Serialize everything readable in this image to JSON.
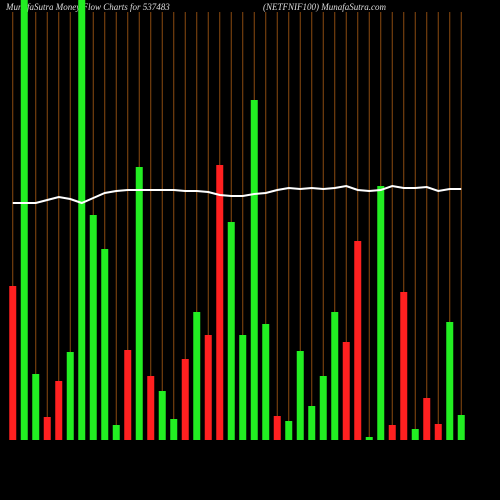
{
  "chart_data": {
    "type": "bar",
    "title": "MunafaSutra  Money Flow  Charts for 537483",
    "subtitle": "(NETFNIF100) MunafaSutra.com",
    "categories": [
      null,
      null,
      null,
      null,
      null,
      null,
      null,
      null,
      null,
      null,
      null,
      null,
      null,
      null,
      null,
      null,
      null,
      null,
      null,
      null,
      null,
      null,
      null,
      null,
      null,
      null,
      null,
      null,
      null,
      null,
      null,
      null,
      null,
      null,
      null,
      null,
      null,
      null,
      null,
      null
    ],
    "values": [
      154,
      440,
      66,
      23,
      59,
      88,
      440,
      225,
      191,
      15,
      90,
      273,
      64,
      49,
      21,
      81,
      128,
      105,
      275,
      218,
      105,
      340,
      116,
      24,
      19,
      89,
      34,
      64,
      128,
      98,
      199,
      3,
      254,
      15,
      148,
      11,
      42,
      16,
      118,
      25
    ],
    "bar_colors": [
      "#ff2020",
      "#22ee22",
      "#22ee22",
      "#ff2020",
      "#ff2020",
      "#22ee22",
      "#22ee22",
      "#22ee22",
      "#22ee22",
      "#22ee22",
      "#ff2020",
      "#22ee22",
      "#ff2020",
      "#22ee22",
      "#22ee22",
      "#ff2020",
      "#22ee22",
      "#ff2020",
      "#ff2020",
      "#22ee22",
      "#22ee22",
      "#22ee22",
      "#22ee22",
      "#ff2020",
      "#22ee22",
      "#22ee22",
      "#22ee22",
      "#22ee22",
      "#22ee22",
      "#ff2020",
      "#ff2020",
      "#22ee22",
      "#22ee22",
      "#ff2020",
      "#ff2020",
      "#22ee22",
      "#ff2020",
      "#ff2020",
      "#22ee22",
      "#22ee22"
    ],
    "line": {
      "color": "#ffffff",
      "values": [
        237,
        237,
        237,
        240,
        243,
        241,
        237,
        242,
        247,
        249,
        250,
        250,
        250,
        250,
        250,
        249,
        249,
        248,
        245,
        244,
        244,
        246,
        247,
        250,
        252,
        251,
        252,
        251,
        252,
        254,
        250,
        249,
        250,
        254,
        252,
        252,
        253,
        249,
        251,
        251
      ]
    },
    "ylim": [
      0,
      440
    ]
  }
}
